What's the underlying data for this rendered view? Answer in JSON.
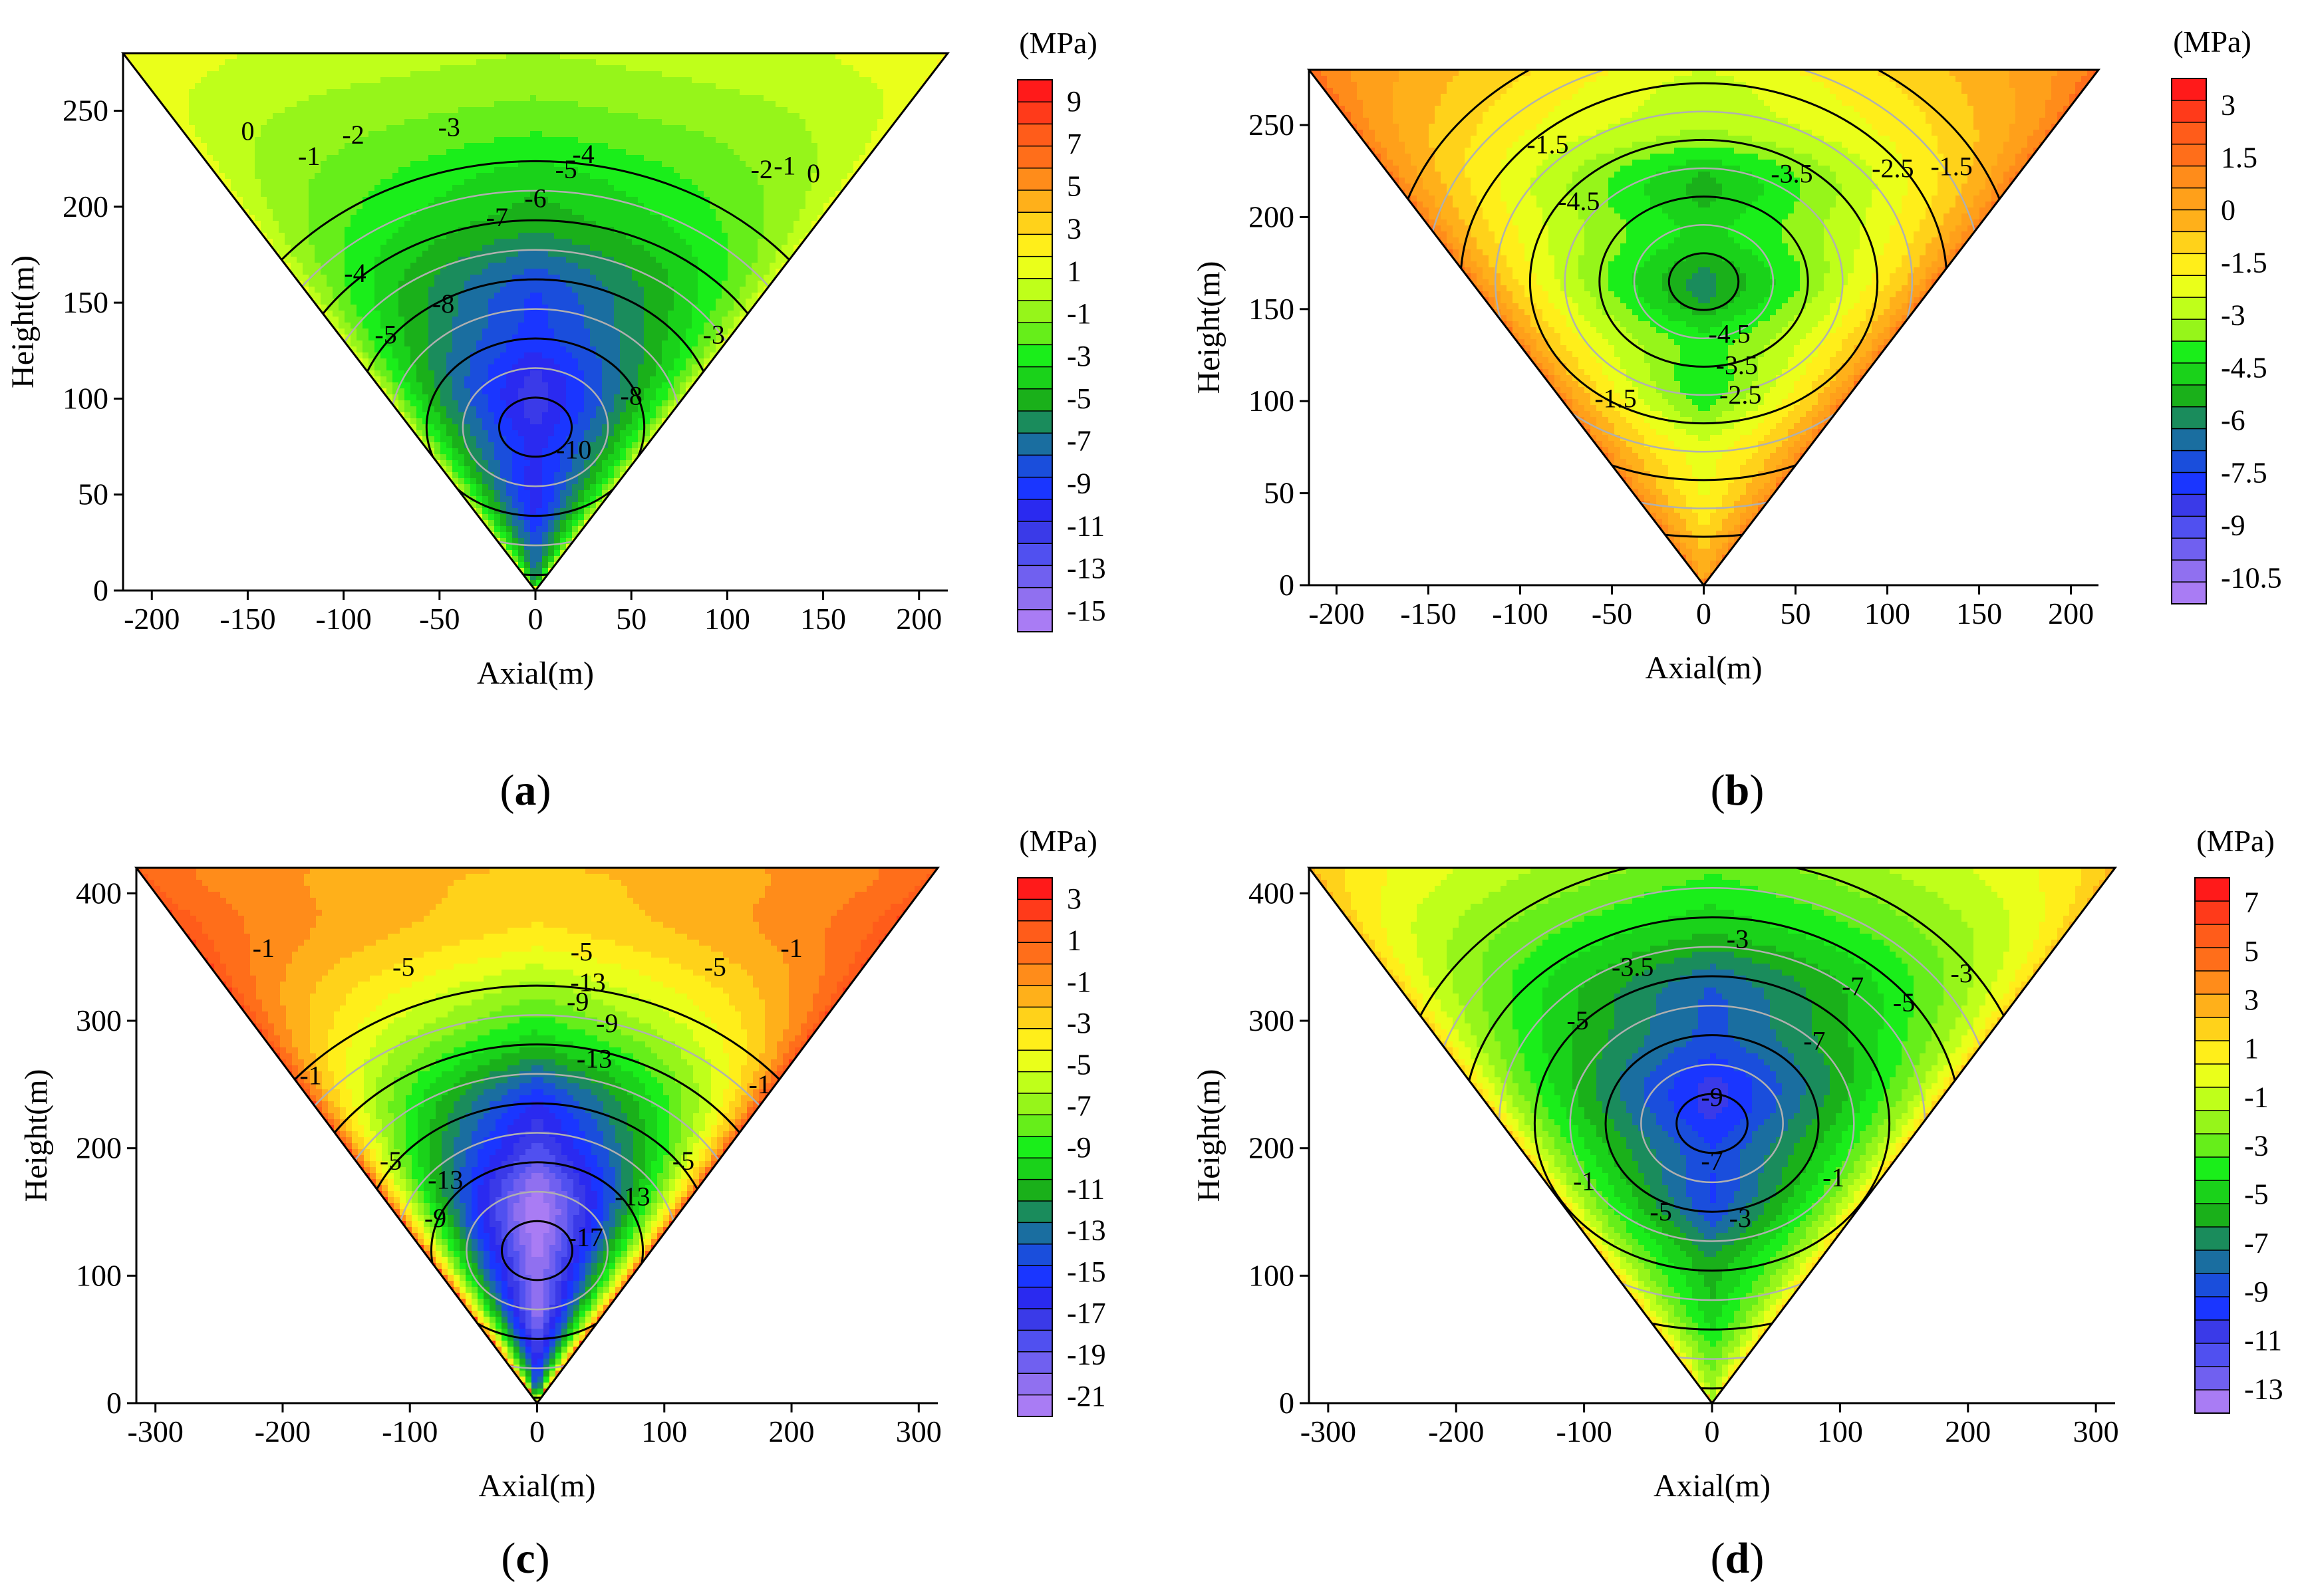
{
  "figure_description_text": "",
  "chart_data": [
    {
      "type": "heatmap",
      "panel": "a",
      "panel_label_open": "(",
      "panel_letter": "a",
      "panel_label_close": ")",
      "xlabel": "Axial(m)",
      "ylabel": "Height(m)",
      "xlim": [
        -215,
        215
      ],
      "ylim": [
        0,
        280
      ],
      "xticks": [
        -200,
        -150,
        -100,
        -50,
        0,
        50,
        100,
        150,
        200
      ],
      "yticks": [
        0,
        50,
        100,
        150,
        200,
        250
      ],
      "domain_shape": "inverted-triangle",
      "colorbar": {
        "unit": "(MPa)",
        "labels": [
          "9",
          "7",
          "5",
          "3",
          "1",
          "-1",
          "-3",
          "-5",
          "-7",
          "-9",
          "-11",
          "-13",
          "-15"
        ],
        "colors": [
          "#ff1a1a",
          "#ff3a1a",
          "#ff5c1a",
          "#ff6e1a",
          "#ff8c1a",
          "#ffb01a",
          "#ffd21a",
          "#ffee1a",
          "#eaff1a",
          "#bfff1a",
          "#96f51a",
          "#66ee1a",
          "#1aee1a",
          "#1ad21a",
          "#1ab01a",
          "#1a8c5c",
          "#1a6ea0",
          "#1a4edc",
          "#1a36ff",
          "#2a2af0",
          "#3a3ae8",
          "#5050f0",
          "#7060f0",
          "#9070f0",
          "#a97cf4"
        ]
      },
      "field": {
        "center_min": -10.5,
        "surface_top": 0.5,
        "edge_value": 1.0,
        "center_y_fraction": 0.32
      },
      "contour_labels": [
        {
          "text": "0",
          "x": -150,
          "y": 238
        },
        {
          "text": "-1",
          "x": -118,
          "y": 225
        },
        {
          "text": "-2",
          "x": -95,
          "y": 236
        },
        {
          "text": "-3",
          "x": -45,
          "y": 240
        },
        {
          "text": "-4",
          "x": 25,
          "y": 226
        },
        {
          "text": "-5",
          "x": 16,
          "y": 218
        },
        {
          "text": "-6",
          "x": 0,
          "y": 203
        },
        {
          "text": "-7",
          "x": -20,
          "y": 193
        },
        {
          "text": "-8",
          "x": -48,
          "y": 148
        },
        {
          "text": "-4",
          "x": -94,
          "y": 164
        },
        {
          "text": "-5",
          "x": -78,
          "y": 132
        },
        {
          "text": "-10",
          "x": 20,
          "y": 72
        },
        {
          "text": "-8",
          "x": 50,
          "y": 100
        },
        {
          "text": "-2",
          "x": 118,
          "y": 218
        },
        {
          "text": "-1",
          "x": 130,
          "y": 220
        },
        {
          "text": "0",
          "x": 145,
          "y": 216
        },
        {
          "text": "-3",
          "x": 93,
          "y": 132
        }
      ]
    },
    {
      "type": "heatmap",
      "panel": "b",
      "panel_label_open": "(",
      "panel_letter": "b",
      "panel_label_close": ")",
      "xlabel": "Axial(m)",
      "ylabel": "Height(m)",
      "xlim": [
        -215,
        215
      ],
      "ylim": [
        0,
        280
      ],
      "xticks": [
        -200,
        -150,
        -100,
        -50,
        0,
        50,
        100,
        150,
        200
      ],
      "yticks": [
        0,
        50,
        100,
        150,
        200,
        250
      ],
      "domain_shape": "inverted-triangle",
      "colorbar": {
        "unit": "(MPa)",
        "labels": [
          "3",
          "1.5",
          "0",
          "-1.5",
          "-3",
          "-4.5",
          "-6",
          "-7.5",
          "-9",
          "-10.5"
        ],
        "colors": [
          "#ff1a1a",
          "#ff3a1a",
          "#ff5c1a",
          "#ff6e1a",
          "#ff8c1a",
          "#ffa01a",
          "#ffb01a",
          "#ffd21a",
          "#ffee1a",
          "#eaff1a",
          "#bfff1a",
          "#96f51a",
          "#1aee1a",
          "#1ad21a",
          "#1ab01a",
          "#1a8c5c",
          "#1a6ea0",
          "#1a4edc",
          "#1a36ff",
          "#3a3ae8",
          "#5050f0",
          "#7060f0",
          "#9070f0",
          "#a97cf4"
        ]
      },
      "field": {
        "center_min": -5.2,
        "surface_top": 0.2,
        "edge_value": 1.2,
        "center_y_fraction": 0.62
      },
      "contour_labels": [
        {
          "text": "-1.5",
          "x": -85,
          "y": 238
        },
        {
          "text": "-3.5",
          "x": 48,
          "y": 222
        },
        {
          "text": "-2.5",
          "x": 103,
          "y": 225
        },
        {
          "text": "-1.5",
          "x": 135,
          "y": 226
        },
        {
          "text": "-4.5",
          "x": -68,
          "y": 207
        },
        {
          "text": "-4.5",
          "x": 14,
          "y": 135
        },
        {
          "text": "-3.5",
          "x": 18,
          "y": 118
        },
        {
          "text": "-2.5",
          "x": 20,
          "y": 102
        },
        {
          "text": "-1.5",
          "x": -48,
          "y": 100
        }
      ]
    },
    {
      "type": "heatmap",
      "panel": "c",
      "panel_label_open": "(",
      "panel_letter": "c",
      "panel_label_close": ")",
      "xlabel": "Axial(m)",
      "ylabel": "Height(m)",
      "xlim": [
        -315,
        315
      ],
      "ylim": [
        0,
        420
      ],
      "xticks": [
        -300,
        -200,
        -100,
        0,
        100,
        200,
        300
      ],
      "yticks": [
        0,
        100,
        200,
        300,
        400
      ],
      "domain_shape": "inverted-triangle",
      "colorbar": {
        "unit": "(MPa)",
        "labels": [
          "3",
          "1",
          "-1",
          "-3",
          "-5",
          "-7",
          "-9",
          "-11",
          "-13",
          "-15",
          "-17",
          "-19",
          "-21"
        ],
        "colors": [
          "#ff1a1a",
          "#ff3a1a",
          "#ff5c1a",
          "#ff6e1a",
          "#ff8c1a",
          "#ffb01a",
          "#ffd21a",
          "#ffee1a",
          "#eaff1a",
          "#bfff1a",
          "#96f51a",
          "#66ee1a",
          "#1aee1a",
          "#1ad21a",
          "#1ab01a",
          "#1a8c5c",
          "#1a6ea0",
          "#1a4edc",
          "#1a36ff",
          "#2a2af0",
          "#3a3ae8",
          "#5050f0",
          "#7060f0",
          "#9070f0",
          "#a97cf4"
        ]
      },
      "field": {
        "center_min": -21.0,
        "surface_top": -1.0,
        "edge_value": 1.5,
        "center_y_fraction": 0.3
      },
      "contour_labels": [
        {
          "text": "-1",
          "x": -215,
          "y": 355
        },
        {
          "text": "-5",
          "x": -105,
          "y": 340
        },
        {
          "text": "-5",
          "x": 35,
          "y": 352
        },
        {
          "text": "-5",
          "x": 140,
          "y": 340
        },
        {
          "text": "-1",
          "x": 200,
          "y": 355
        },
        {
          "text": "-13",
          "x": 40,
          "y": 328
        },
        {
          "text": "-9",
          "x": 32,
          "y": 313
        },
        {
          "text": "-9",
          "x": 55,
          "y": 296
        },
        {
          "text": "-13",
          "x": 45,
          "y": 268
        },
        {
          "text": "-1",
          "x": -178,
          "y": 255
        },
        {
          "text": "-1",
          "x": 175,
          "y": 248
        },
        {
          "text": "-5",
          "x": -115,
          "y": 188
        },
        {
          "text": "-5",
          "x": 115,
          "y": 188
        },
        {
          "text": "-13",
          "x": -72,
          "y": 173
        },
        {
          "text": "-9",
          "x": -80,
          "y": 143
        },
        {
          "text": "-13",
          "x": 75,
          "y": 160
        },
        {
          "text": "-17",
          "x": 38,
          "y": 128
        }
      ]
    },
    {
      "type": "heatmap",
      "panel": "d",
      "panel_label_open": "(",
      "panel_letter": "d",
      "panel_label_close": ")",
      "xlabel": "Axial(m)",
      "ylabel": "Height(m)",
      "xlim": [
        -315,
        315
      ],
      "ylim": [
        0,
        420
      ],
      "xticks": [
        -300,
        -200,
        -100,
        0,
        100,
        200,
        300
      ],
      "yticks": [
        0,
        100,
        200,
        300,
        400
      ],
      "domain_shape": "inverted-triangle",
      "colorbar": {
        "unit": "(MPa)",
        "labels": [
          "7",
          "5",
          "3",
          "1",
          "-1",
          "-3",
          "-5",
          "-7",
          "-9",
          "-11",
          "-13"
        ],
        "colors": [
          "#ff1a1a",
          "#ff3a1a",
          "#ff5c1a",
          "#ff6e1a",
          "#ff8c1a",
          "#ffb01a",
          "#ffd21a",
          "#ffee1a",
          "#eaff1a",
          "#bfff1a",
          "#96f51a",
          "#66ee1a",
          "#1aee1a",
          "#1ad21a",
          "#1ab01a",
          "#1a8c5c",
          "#1a6ea0",
          "#1a4edc",
          "#1a36ff",
          "#3a3ae8",
          "#5050f0",
          "#7060f0",
          "#a97cf4"
        ]
      },
      "field": {
        "center_min": -9.5,
        "surface_top": 0.5,
        "edge_value": 2.0,
        "center_y_fraction": 0.55
      },
      "contour_labels": [
        {
          "text": "-3",
          "x": 20,
          "y": 362
        },
        {
          "text": "-3.5",
          "x": -62,
          "y": 340
        },
        {
          "text": "-7",
          "x": 110,
          "y": 325
        },
        {
          "text": "-3",
          "x": 195,
          "y": 335
        },
        {
          "text": "-5",
          "x": -105,
          "y": 298
        },
        {
          "text": "-5",
          "x": 150,
          "y": 312
        },
        {
          "text": "-7",
          "x": 80,
          "y": 282
        },
        {
          "text": "-9",
          "x": 0,
          "y": 238
        },
        {
          "text": "-7",
          "x": 0,
          "y": 188
        },
        {
          "text": "-1",
          "x": -100,
          "y": 172
        },
        {
          "text": "-1",
          "x": 95,
          "y": 175
        },
        {
          "text": "-5",
          "x": -40,
          "y": 148
        },
        {
          "text": "-3",
          "x": 22,
          "y": 143
        }
      ]
    }
  ]
}
